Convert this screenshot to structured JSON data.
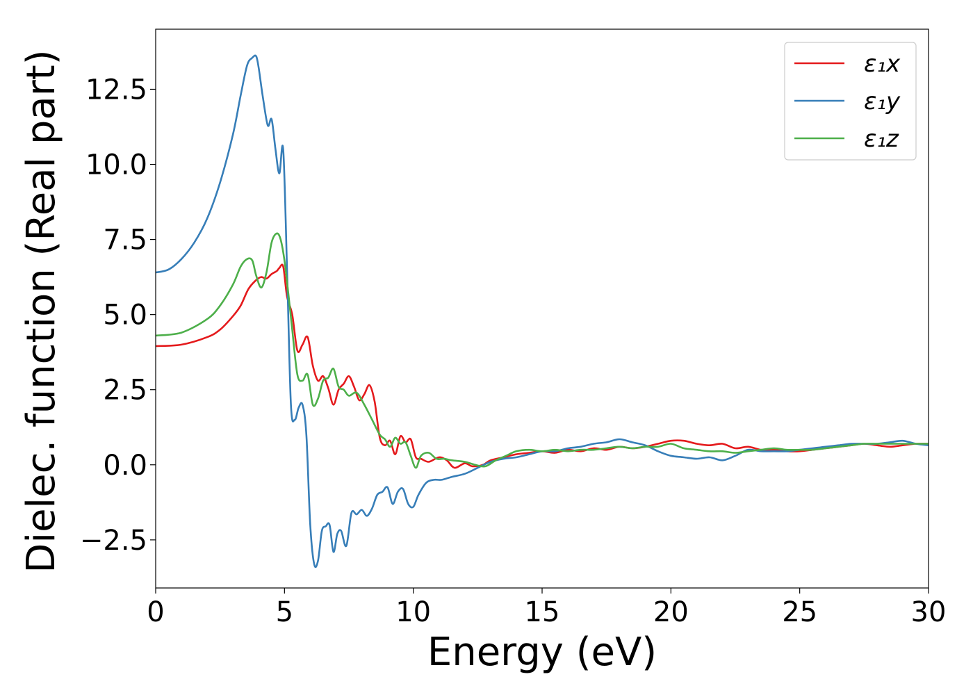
{
  "chart_data": {
    "type": "line",
    "title": "",
    "xlabel": "Energy (eV)",
    "ylabel": "Dielec. function (Real part)",
    "xlim": [
      0,
      30
    ],
    "ylim": [
      -4.1,
      14.5
    ],
    "xticks": [
      0,
      5,
      10,
      15,
      20,
      25,
      30
    ],
    "xtick_labels": [
      "0",
      "5",
      "10",
      "15",
      "20",
      "25",
      "30"
    ],
    "yticks": [
      -2.5,
      0.0,
      2.5,
      5.0,
      7.5,
      10.0,
      12.5
    ],
    "ytick_labels": [
      "−2.5",
      "0.0",
      "2.5",
      "5.0",
      "7.5",
      "10.0",
      "12.5"
    ],
    "grid": false,
    "legend_position": "top-right",
    "series": [
      {
        "name": "ε₁x",
        "color": "#e41a1c",
        "x": [
          0,
          1,
          2,
          2.5,
          3,
          3.3,
          3.6,
          3.9,
          4.1,
          4.3,
          4.5,
          4.7,
          4.8,
          4.95,
          5.1,
          5.3,
          5.5,
          5.7,
          5.9,
          6.1,
          6.3,
          6.5,
          6.7,
          6.9,
          7.1,
          7.3,
          7.5,
          7.7,
          7.9,
          8.1,
          8.3,
          8.5,
          8.7,
          8.9,
          9.1,
          9.3,
          9.5,
          9.7,
          9.9,
          10.1,
          10.3,
          10.6,
          11,
          11.3,
          11.6,
          12,
          12.3,
          12.7,
          13,
          13.5,
          14,
          14.5,
          15,
          15.5,
          16,
          16.5,
          17,
          17.5,
          18,
          18.5,
          19,
          19.5,
          20,
          20.5,
          21,
          21.5,
          22,
          22.5,
          23,
          23.5,
          24,
          24.5,
          25,
          25.5,
          26,
          26.5,
          27,
          27.5,
          28,
          28.5,
          29,
          29.5,
          30
        ],
        "values": [
          3.95,
          4.0,
          4.25,
          4.5,
          4.95,
          5.3,
          5.85,
          6.15,
          6.25,
          6.2,
          6.35,
          6.45,
          6.55,
          6.6,
          5.6,
          5.0,
          3.8,
          4.0,
          4.25,
          3.3,
          2.8,
          2.95,
          2.55,
          2.0,
          2.5,
          2.7,
          2.95,
          2.6,
          2.15,
          2.35,
          2.65,
          2.1,
          0.9,
          0.65,
          0.8,
          0.35,
          0.95,
          0.75,
          0.85,
          0.25,
          0.2,
          0.1,
          0.25,
          0.15,
          -0.1,
          0.05,
          -0.05,
          0.0,
          0.15,
          0.25,
          0.35,
          0.4,
          0.45,
          0.4,
          0.5,
          0.45,
          0.55,
          0.5,
          0.6,
          0.55,
          0.6,
          0.7,
          0.8,
          0.8,
          0.7,
          0.65,
          0.7,
          0.55,
          0.6,
          0.5,
          0.5,
          0.45,
          0.45,
          0.5,
          0.55,
          0.6,
          0.65,
          0.7,
          0.65,
          0.6,
          0.65,
          0.7,
          0.7
        ]
      },
      {
        "name": "ε₁y",
        "color": "#377eb8",
        "x": [
          0,
          0.5,
          1,
          1.5,
          2,
          2.5,
          3,
          3.3,
          3.55,
          3.75,
          3.9,
          4.0,
          4.15,
          4.35,
          4.5,
          4.65,
          4.8,
          4.95,
          5.1,
          5.25,
          5.4,
          5.55,
          5.7,
          5.85,
          6.0,
          6.15,
          6.3,
          6.45,
          6.6,
          6.75,
          6.9,
          7.05,
          7.2,
          7.4,
          7.6,
          7.8,
          8.0,
          8.2,
          8.4,
          8.6,
          8.8,
          9.0,
          9.2,
          9.4,
          9.6,
          9.8,
          10.0,
          10.2,
          10.5,
          10.8,
          11.1,
          11.5,
          12,
          12.5,
          13,
          13.5,
          14,
          14.5,
          15,
          15.5,
          16,
          16.5,
          17,
          17.5,
          18,
          18.5,
          19,
          19.5,
          20,
          20.5,
          21,
          21.5,
          22,
          22.5,
          23,
          23.5,
          24,
          24.5,
          25,
          25.5,
          26,
          26.5,
          27,
          27.5,
          28,
          28.5,
          29,
          29.5,
          30
        ],
        "values": [
          6.4,
          6.5,
          6.85,
          7.4,
          8.2,
          9.4,
          11.0,
          12.3,
          13.3,
          13.55,
          13.6,
          13.2,
          12.3,
          11.3,
          11.5,
          10.5,
          9.7,
          10.5,
          6.5,
          2.0,
          1.5,
          1.9,
          2.0,
          1.0,
          -2.0,
          -3.3,
          -3.2,
          -2.2,
          -2.05,
          -2.0,
          -2.9,
          -2.3,
          -2.2,
          -2.7,
          -1.6,
          -1.65,
          -1.5,
          -1.7,
          -1.45,
          -1.0,
          -0.9,
          -0.75,
          -1.3,
          -0.9,
          -0.8,
          -1.3,
          -1.4,
          -1.0,
          -0.6,
          -0.5,
          -0.5,
          -0.4,
          -0.3,
          -0.1,
          0.1,
          0.2,
          0.25,
          0.35,
          0.45,
          0.45,
          0.55,
          0.6,
          0.7,
          0.75,
          0.85,
          0.75,
          0.65,
          0.45,
          0.3,
          0.25,
          0.2,
          0.25,
          0.15,
          0.3,
          0.5,
          0.45,
          0.45,
          0.45,
          0.5,
          0.55,
          0.6,
          0.65,
          0.7,
          0.7,
          0.7,
          0.75,
          0.8,
          0.7,
          0.65
        ]
      },
      {
        "name": "ε₁z",
        "color": "#4daf4a",
        "x": [
          0,
          1,
          2,
          2.5,
          3,
          3.3,
          3.55,
          3.75,
          3.9,
          4.1,
          4.3,
          4.5,
          4.7,
          4.85,
          5.0,
          5.15,
          5.3,
          5.5,
          5.7,
          5.9,
          6.1,
          6.3,
          6.5,
          6.7,
          6.9,
          7.1,
          7.3,
          7.5,
          7.8,
          8.1,
          8.4,
          8.7,
          8.9,
          9.1,
          9.3,
          9.5,
          9.7,
          9.9,
          10.1,
          10.3,
          10.6,
          10.9,
          11.2,
          11.5,
          12,
          12.4,
          12.8,
          13.2,
          13.6,
          14,
          14.5,
          15,
          15.5,
          16,
          16.5,
          17,
          17.5,
          18,
          18.5,
          19,
          19.5,
          20,
          20.5,
          21,
          21.5,
          22,
          22.5,
          23,
          23.5,
          24,
          24.5,
          25,
          25.5,
          26,
          26.5,
          27,
          27.5,
          28,
          28.5,
          29,
          29.5,
          30
        ],
        "values": [
          4.3,
          4.4,
          4.85,
          5.3,
          6.0,
          6.6,
          6.85,
          6.8,
          6.3,
          5.9,
          6.4,
          7.4,
          7.7,
          7.5,
          6.8,
          5.7,
          4.5,
          3.0,
          2.8,
          3.0,
          2.0,
          2.2,
          2.8,
          2.9,
          3.2,
          2.6,
          2.5,
          2.3,
          2.4,
          2.0,
          1.5,
          1.0,
          0.85,
          0.6,
          0.9,
          0.7,
          0.75,
          0.3,
          -0.1,
          0.3,
          0.4,
          0.2,
          0.2,
          0.15,
          0.1,
          0.0,
          -0.05,
          0.15,
          0.3,
          0.45,
          0.5,
          0.45,
          0.5,
          0.45,
          0.5,
          0.5,
          0.55,
          0.6,
          0.55,
          0.6,
          0.6,
          0.7,
          0.55,
          0.5,
          0.45,
          0.45,
          0.4,
          0.45,
          0.5,
          0.55,
          0.5,
          0.5,
          0.5,
          0.55,
          0.6,
          0.65,
          0.7,
          0.7,
          0.7,
          0.7,
          0.7,
          0.7
        ]
      }
    ]
  }
}
